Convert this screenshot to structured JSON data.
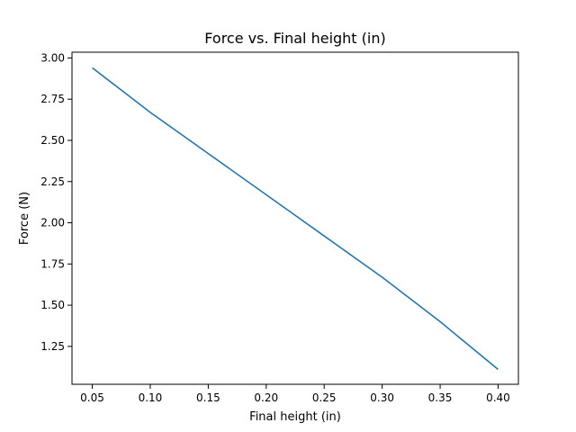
{
  "chart_data": {
    "type": "line",
    "title": "Force vs. Final height (in)",
    "xlabel": "Final height (in)",
    "ylabel": "Force (N)",
    "xlim": [
      0.0325,
      0.4175
    ],
    "ylim": [
      1.02,
      3.035
    ],
    "x_ticks": [
      "0.05",
      "0.10",
      "0.15",
      "0.20",
      "0.25",
      "0.30",
      "0.35",
      "0.40"
    ],
    "y_ticks": [
      "1.25",
      "1.50",
      "1.75",
      "2.00",
      "2.25",
      "2.50",
      "2.75",
      "3.00"
    ],
    "grid": false,
    "series": [
      {
        "color": "#1f77b4",
        "x": [
          0.05,
          0.1,
          0.15,
          0.2,
          0.25,
          0.3,
          0.35,
          0.4
        ],
        "y": [
          2.94,
          2.67,
          2.42,
          2.17,
          1.92,
          1.67,
          1.4,
          1.11
        ]
      }
    ]
  }
}
